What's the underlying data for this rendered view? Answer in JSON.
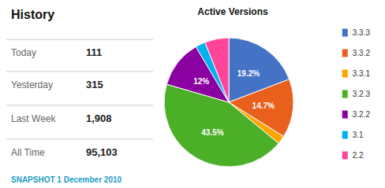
{
  "chart_data": [
    {
      "type": "table",
      "title": "History",
      "categories": [
        "Today",
        "Yesterday",
        "Last Week",
        "All Time"
      ],
      "values": [
        111,
        315,
        1908,
        95103
      ],
      "value_labels": [
        "111",
        "315",
        "1,908",
        "95,103"
      ],
      "annotations": [
        "SNAPSHOT 1 December 2010"
      ]
    },
    {
      "type": "pie",
      "title": "Active Versions",
      "categories": [
        "3.3.3",
        "3.3.2",
        "3.3.1",
        "3.2.3",
        "3.2.2",
        "3.1",
        "2.2"
      ],
      "values": [
        19.2,
        14.7,
        2.1,
        43.5,
        12.0,
        2.5,
        6.0
      ],
      "value_labels": [
        "19.2%",
        "14.7%",
        null,
        "43.5%",
        "12%",
        null,
        null
      ],
      "colors": [
        "#4472C4",
        "#E8601C",
        "#FFA500",
        "#4CAF28",
        "#8B00A0",
        "#00B0F0",
        "#FF4499"
      ],
      "data_labels": true,
      "legend": "right"
    }
  ]
}
